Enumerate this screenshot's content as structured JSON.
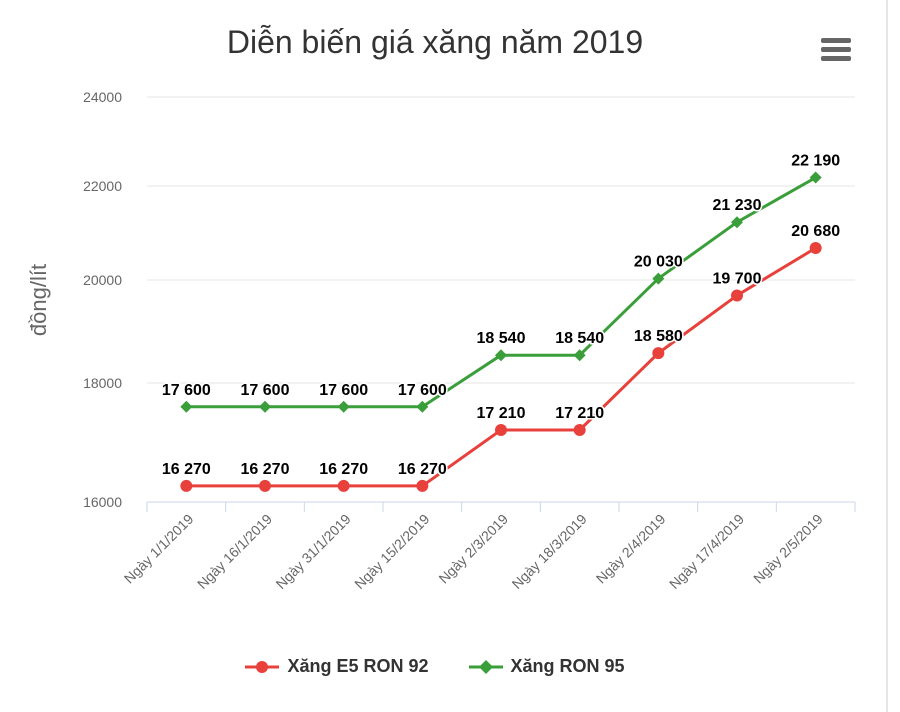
{
  "chart_data": {
    "type": "line",
    "title": "Diễn biến giá xăng năm 2019",
    "ylabel": "đồng/lít",
    "xlabel": "",
    "categories": [
      "Ngày 1/1/2019",
      "Ngày 16/1/2019",
      "Ngày 31/1/2019",
      "Ngày 15/2/2019",
      "Ngày 2/3/2019",
      "Ngày 18/3/2019",
      "Ngày 2/4/2019",
      "Ngày 17/4/2019",
      "Ngày 2/5/2019"
    ],
    "yticks": [
      "16000",
      "18000",
      "20000",
      "22000",
      "24000"
    ],
    "ylim": [
      16000,
      24000
    ],
    "grid": true,
    "legend_position": "bottom",
    "series": [
      {
        "name": "Xăng E5 RON 92",
        "color": "#e8413c",
        "marker": "circle",
        "values": [
          16270,
          16270,
          16270,
          16270,
          17210,
          17210,
          18580,
          19700,
          20680
        ],
        "labels": [
          "16 270",
          "16 270",
          "16 270",
          "16 270",
          "17 210",
          "17 210",
          "18 580",
          "19 700",
          "20 680"
        ]
      },
      {
        "name": "Xăng RON 95",
        "color": "#3a9e3a",
        "marker": "diamond",
        "values": [
          17600,
          17600,
          17600,
          17600,
          18540,
          18540,
          20030,
          21230,
          22190
        ],
        "labels": [
          "17 600",
          "17 600",
          "17 600",
          "17 600",
          "18 540",
          "18 540",
          "20 030",
          "21 230",
          "22 190"
        ]
      }
    ]
  },
  "icons": {
    "menu": "hamburger-menu-icon"
  }
}
